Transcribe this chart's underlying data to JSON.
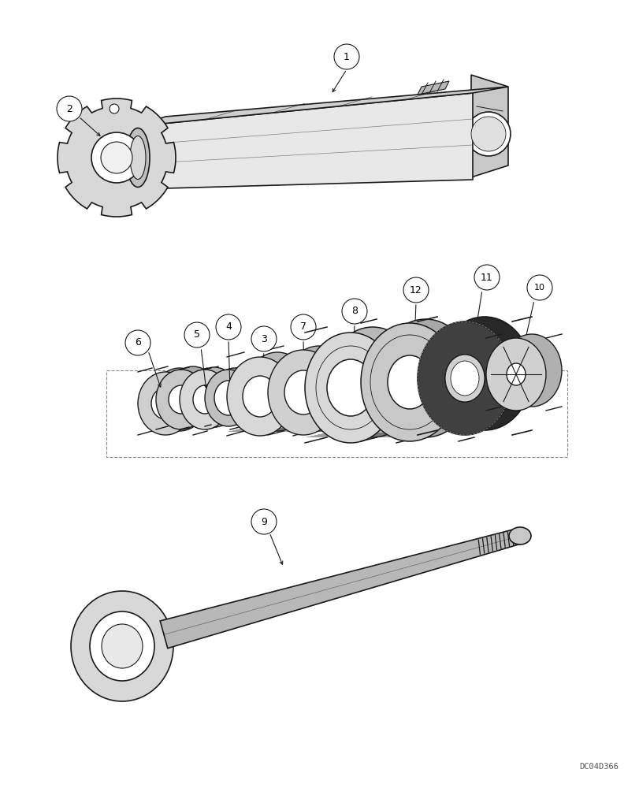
{
  "bg_color": "#ffffff",
  "line_color": "#1a1a1a",
  "watermark": "DC04D366",
  "fig_w": 8.12,
  "fig_h": 10.0,
  "dpi": 100
}
